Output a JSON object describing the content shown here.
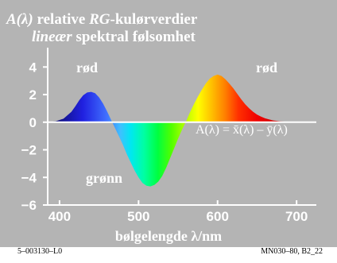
{
  "chart_data": {
    "type": "area",
    "title_line1_prefix": "A(λ)",
    "title_line1_rest": " relative ",
    "title_line1_em": "RG",
    "title_line1_suffix": "-kulørverdier",
    "title_line2_em": "lineær",
    "title_line2_rest": " spektral følsomhet",
    "xlabel": "bølgelengde λ/nm",
    "ylabel": "",
    "xlim": [
      385,
      725
    ],
    "ylim": [
      -6,
      5.4
    ],
    "xticks": [
      400,
      500,
      600,
      700
    ],
    "yticks": [
      4,
      2,
      0,
      -2,
      -4,
      -6
    ],
    "grid": false,
    "annotations": {
      "red_left": "rød",
      "red_right": "rød",
      "green": "grønn",
      "formula": "A(λ) = x̄(λ) – ȳ(λ)"
    },
    "series": [
      {
        "x": [
          385,
          395,
          405,
          415,
          420,
          425,
          430,
          435,
          440,
          445,
          450,
          455,
          460,
          465,
          470,
          475,
          480,
          485,
          490,
          495,
          500,
          505,
          510,
          515,
          520,
          525,
          530,
          535,
          540,
          545,
          550,
          555,
          560,
          565,
          570,
          575,
          580,
          585,
          590,
          595,
          600,
          605,
          610,
          615,
          620,
          625,
          630,
          635,
          640,
          645,
          650,
          655,
          660,
          665,
          670,
          680,
          690,
          700,
          710,
          720
        ],
        "values": [
          0.01,
          0.07,
          0.25,
          0.75,
          1.15,
          1.6,
          1.95,
          2.15,
          2.2,
          2.1,
          1.8,
          1.35,
          0.8,
          0.2,
          -0.4,
          -1.0,
          -1.6,
          -2.3,
          -2.9,
          -3.5,
          -4.0,
          -4.4,
          -4.6,
          -4.65,
          -4.55,
          -4.3,
          -3.9,
          -3.3,
          -2.6,
          -1.9,
          -1.2,
          -0.55,
          0.05,
          0.7,
          1.3,
          1.85,
          2.35,
          2.8,
          3.15,
          3.35,
          3.45,
          3.35,
          3.1,
          2.8,
          2.45,
          2.05,
          1.65,
          1.3,
          1.0,
          0.75,
          0.55,
          0.4,
          0.28,
          0.2,
          0.13,
          0.06,
          0.03,
          0.01,
          0.005,
          0.0
        ]
      }
    ]
  },
  "colors": {
    "plot_background": "#b4b4b4",
    "text": "#ffffff",
    "footer_text": "#000000"
  },
  "footer": {
    "left": "5–003130–L0",
    "right": "MN030–80, B2_22"
  }
}
